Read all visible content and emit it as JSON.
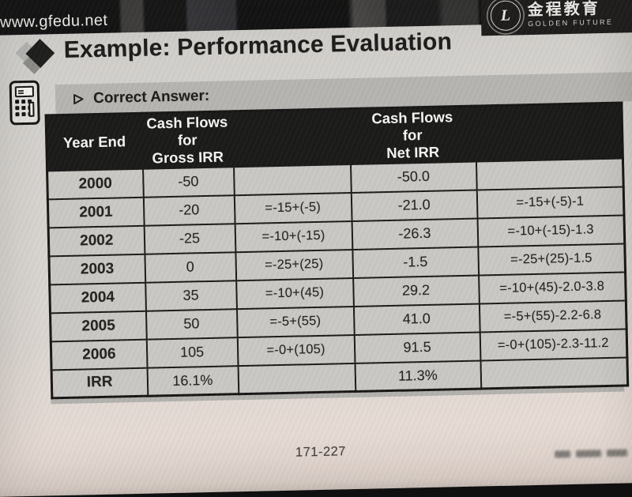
{
  "header_bar": {
    "url": "www.gfedu.net"
  },
  "brand": {
    "seal_letter": "L",
    "name_cn": "金程教育",
    "name_en": "GOLDEN FUTURE"
  },
  "title": {
    "text": "Example: Performance Evaluation"
  },
  "section": {
    "label": "Correct Answer:"
  },
  "table": {
    "col_keys": [
      "year-end",
      "gross-cash-flow",
      "gross-irr-formula",
      "net-cash-flow",
      "net-irr-formula"
    ],
    "headers": [
      "Year End",
      "Cash Flows\nfor\nGross IRR",
      "",
      "Cash Flows\nfor\nNet IRR",
      ""
    ],
    "rows": [
      [
        "2000",
        "-50",
        "",
        "-50.0",
        ""
      ],
      [
        "2001",
        "-20",
        "=-15+(-5)",
        "-21.0",
        "=-15+(-5)-1"
      ],
      [
        "2002",
        "-25",
        "=-10+(-15)",
        "-26.3",
        "=-10+(-15)-1.3"
      ],
      [
        "2003",
        "0",
        "=-25+(25)",
        "-1.5",
        "=-25+(25)-1.5"
      ],
      [
        "2004",
        "35",
        "=-10+(45)",
        "29.2",
        "=-10+(45)-2.0-3.8"
      ],
      [
        "2005",
        "50",
        "=-5+(55)",
        "41.0",
        "=-5+(55)-2.2-6.8"
      ],
      [
        "2006",
        "105",
        "=-0+(105)",
        "91.5",
        "=-0+(105)-2.3-11.2"
      ],
      [
        "IRR",
        "16.1%",
        "",
        "11.3%",
        ""
      ]
    ]
  },
  "footer": {
    "page_number": "171-227"
  },
  "colors": {
    "top_bar": "#141413",
    "table_header_bg": "#1a1a19",
    "cell_bg": "#c9c8c4",
    "strip_bg": "#b5b4b0",
    "page_bg": "#d7d4d0"
  }
}
